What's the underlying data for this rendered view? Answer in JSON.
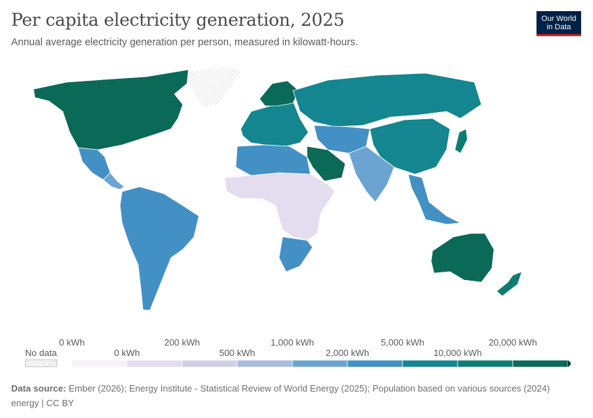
{
  "header": {
    "title": "Per capita electricity generation, 2025",
    "subtitle": "Annual average electricity generation per person, measured in kilowatt-hours.",
    "logo_line1": "Our World",
    "logo_line2": "in Data"
  },
  "legend": {
    "no_data": "No data",
    "tick_top": [
      "0 kWh",
      "200 kWh",
      "1,000 kWh",
      "5,000 kWh",
      "20,000 kWh"
    ],
    "tick_bottom": [
      "0 kWh",
      "500 kWh",
      "2,000 kWh",
      "10,000 kWh"
    ],
    "colors": [
      "#f6f2fa",
      "#e4dcef",
      "#cfd0e5",
      "#a9bcdd",
      "#6ba4d1",
      "#4390c5",
      "#13868f",
      "#0d7d72",
      "#0b6957",
      "#063f30"
    ]
  },
  "footer": {
    "source_label": "Data source:",
    "source_text": "Ember (2026); Energy Institute - Statistical Review of World Energy (2025); Population based on various sources (2024)",
    "license": "energy | CC BY"
  },
  "map": {
    "regions": [
      {
        "name": "North America",
        "color": "#0b6957"
      },
      {
        "name": "Greenland",
        "color": "#e8e8e8"
      },
      {
        "name": "Mexico",
        "color": "#4390c5"
      },
      {
        "name": "Central America",
        "color": "#6ba4d1"
      },
      {
        "name": "South America",
        "color": "#4390c5"
      },
      {
        "name": "Europe",
        "color": "#13868f"
      },
      {
        "name": "Scandinavia",
        "color": "#0b6957"
      },
      {
        "name": "Russia",
        "color": "#13868f"
      },
      {
        "name": "Central Asia",
        "color": "#4390c5"
      },
      {
        "name": "China",
        "color": "#13868f"
      },
      {
        "name": "South Asia",
        "color": "#6ba4d1"
      },
      {
        "name": "Southeast Asia",
        "color": "#4390c5"
      },
      {
        "name": "Middle East",
        "color": "#0b6957"
      },
      {
        "name": "North Africa",
        "color": "#4390c5"
      },
      {
        "name": "Sub-Saharan Africa",
        "color": "#e4dcef"
      },
      {
        "name": "Southern Africa",
        "color": "#4390c5"
      },
      {
        "name": "Australia",
        "color": "#0b6957"
      },
      {
        "name": "New Zealand",
        "color": "#0d7d72"
      },
      {
        "name": "Japan",
        "color": "#0d7d72"
      }
    ]
  }
}
